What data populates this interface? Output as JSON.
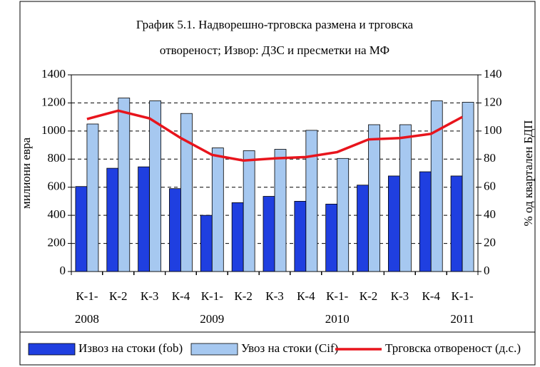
{
  "chart_data": {
    "type": "bar_line",
    "title": [
      "График 5.1. Надворешно-трговска размена и  трговска",
      "отвореност;  Извор: ДЗС и пресметки на  МФ"
    ],
    "y_label": "милиони евра",
    "y2_label": "% од квартален БДП",
    "categories": [
      [
        "К-1-",
        "2008"
      ],
      [
        "К-2"
      ],
      [
        "К-3"
      ],
      [
        "К-4"
      ],
      [
        "К-1-",
        "2009"
      ],
      [
        "К-2"
      ],
      [
        "К-3"
      ],
      [
        "К-4"
      ],
      [
        "К-1-",
        "2010"
      ],
      [
        "К-2"
      ],
      [
        "К-3"
      ],
      [
        "К-4"
      ],
      [
        "К-1-",
        "2011"
      ]
    ],
    "series": [
      {
        "name": "Извоз на стоки (fob)",
        "color": "#1f3fe0",
        "kind": "bar",
        "values": [
          605,
          735,
          745,
          590,
          400,
          490,
          535,
          500,
          480,
          615,
          680,
          710,
          680
        ]
      },
      {
        "name": "Увоз на стоки (Cif)",
        "color": "#a6c8f0",
        "kind": "bar",
        "values": [
          1050,
          1235,
          1215,
          1125,
          880,
          860,
          870,
          1005,
          805,
          1045,
          1045,
          1215,
          1205
        ]
      },
      {
        "name": "Трговска отвореност (д.с.)",
        "color": "#e8141c",
        "kind": "line",
        "axis": "y2",
        "values": [
          108.5,
          114.5,
          109,
          95,
          83,
          79,
          80.5,
          81.5,
          85,
          94,
          95,
          98,
          110
        ]
      }
    ],
    "ylim": [
      0,
      1400
    ],
    "yticks": [
      0,
      200,
      400,
      600,
      800,
      1000,
      1200,
      1400
    ],
    "y2lim": [
      0,
      140
    ],
    "y2ticks": [
      0,
      20,
      40,
      60,
      80,
      100,
      120,
      140
    ],
    "grid": true
  }
}
